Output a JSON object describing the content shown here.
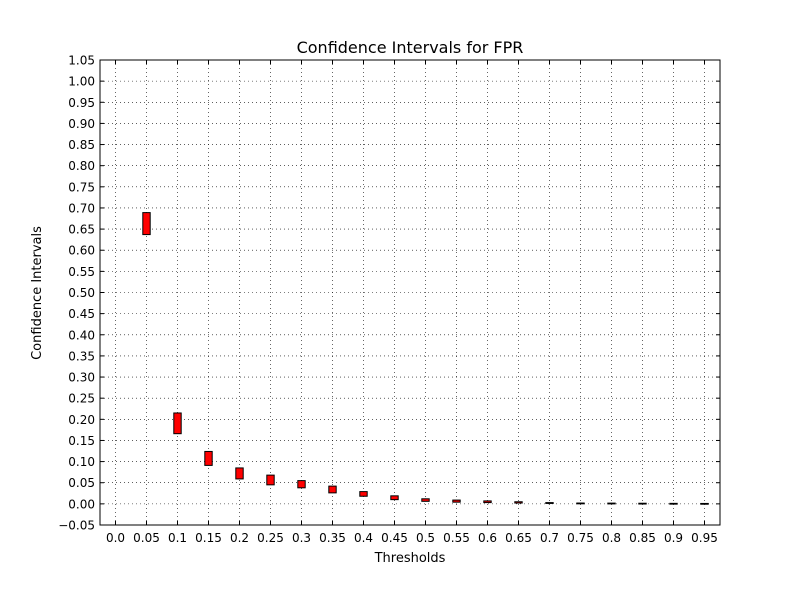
{
  "chart_data": {
    "type": "bar",
    "title": "Confidence Intervals for FPR",
    "xlabel": "Thresholds",
    "ylabel": "Confidence Intervals",
    "xlim": [
      -0.025,
      0.975
    ],
    "ylim": [
      -0.05,
      1.05
    ],
    "grid": true,
    "x_ticks": [
      "0.0",
      "0.05",
      "0.1",
      "0.15",
      "0.2",
      "0.25",
      "0.3",
      "0.35",
      "0.4",
      "0.45",
      "0.5",
      "0.55",
      "0.6",
      "0.65",
      "0.7",
      "0.75",
      "0.8",
      "0.85",
      "0.9",
      "0.95"
    ],
    "y_ticks": [
      "−0.05",
      "0.00",
      "0.05",
      "0.10",
      "0.15",
      "0.20",
      "0.25",
      "0.30",
      "0.35",
      "0.40",
      "0.45",
      "0.50",
      "0.55",
      "0.60",
      "0.65",
      "0.70",
      "0.75",
      "0.80",
      "0.85",
      "0.90",
      "0.95",
      "1.00",
      "1.05"
    ],
    "x": [
      0.05,
      0.1,
      0.15,
      0.2,
      0.25,
      0.3,
      0.35,
      0.4,
      0.45,
      0.5,
      0.55,
      0.6,
      0.65,
      0.7,
      0.75,
      0.8,
      0.85,
      0.9,
      0.95
    ],
    "lower": [
      0.637,
      0.166,
      0.091,
      0.059,
      0.045,
      0.038,
      0.026,
      0.018,
      0.01,
      0.006,
      0.004,
      0.003,
      0.002,
      0.001,
      0.001,
      0.0008,
      0.0006,
      0.0005,
      0.0004
    ],
    "upper": [
      0.689,
      0.215,
      0.124,
      0.085,
      0.068,
      0.055,
      0.042,
      0.029,
      0.019,
      0.012,
      0.009,
      0.007,
      0.005,
      0.003,
      0.002,
      0.0018,
      0.0015,
      0.0012,
      0.001
    ],
    "bar_color": "#ff0000",
    "edge_color": "#000000"
  }
}
